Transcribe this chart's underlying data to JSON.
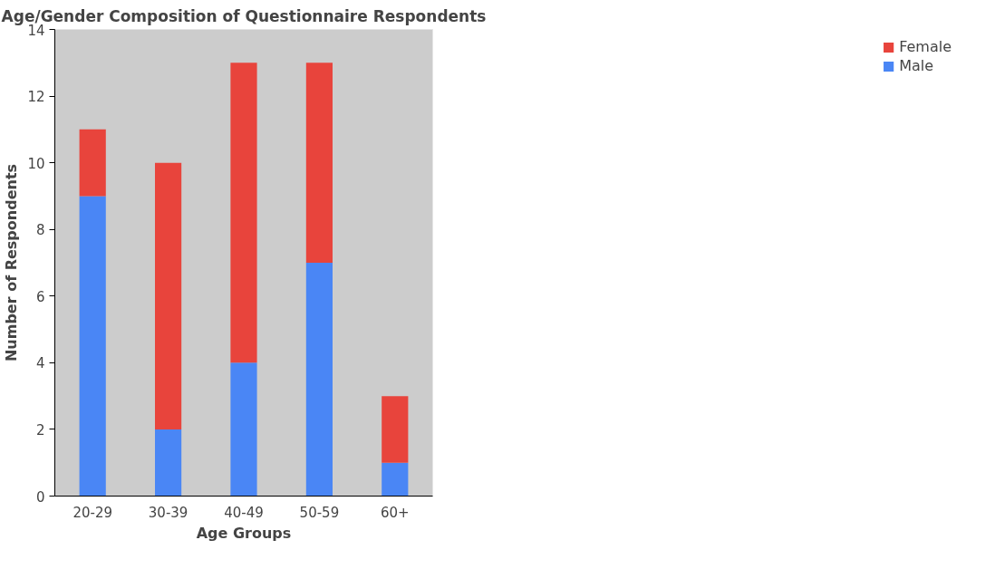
{
  "chart_data": {
    "type": "bar",
    "title": "Age/Gender Composition of Questionnaire Respondents",
    "xlabel": "Age Groups",
    "ylabel": "Number of Respondents",
    "categories": [
      "20-29",
      "30-39",
      "40-49",
      "50-59",
      "60+"
    ],
    "stacked": true,
    "series": [
      {
        "name": "Male",
        "color": "#4a86f5",
        "values": [
          9,
          2,
          4,
          7,
          1
        ]
      },
      {
        "name": "Female",
        "color": "#e8443c",
        "values": [
          2,
          8,
          9,
          6,
          2
        ]
      }
    ],
    "ylim": [
      0,
      14
    ],
    "yticks": [
      0,
      2,
      4,
      6,
      8,
      10,
      12,
      14
    ],
    "grid": false,
    "legend": "right"
  }
}
